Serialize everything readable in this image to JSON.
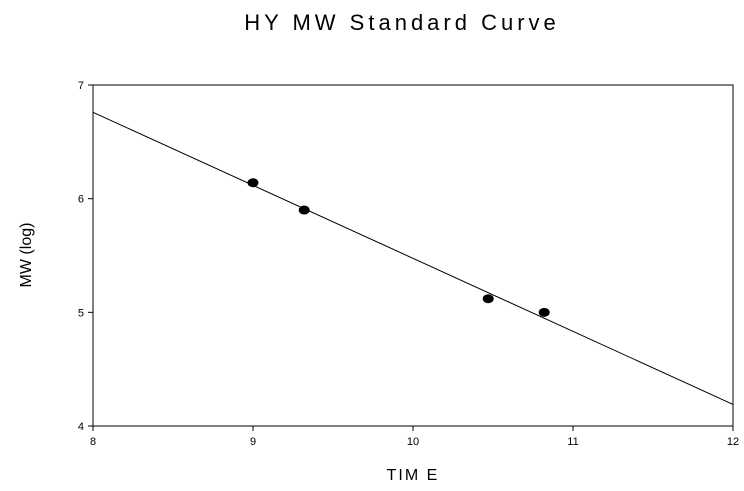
{
  "chart_data": {
    "type": "scatter",
    "title": "HY  MW  Standard Curve",
    "xlabel": "TIM E",
    "ylabel": "MW (log)",
    "xlim": [
      8,
      12
    ],
    "ylim": [
      4,
      7
    ],
    "xticks": [
      8,
      9,
      10,
      11,
      12
    ],
    "yticks": [
      4,
      5,
      6,
      7
    ],
    "grid": false,
    "series": [
      {
        "type": "scatter",
        "points": [
          {
            "x": 9.0,
            "y": 6.14
          },
          {
            "x": 9.32,
            "y": 5.9
          },
          {
            "x": 10.47,
            "y": 5.12
          },
          {
            "x": 10.82,
            "y": 5.0
          }
        ]
      },
      {
        "type": "line",
        "points": [
          {
            "x": 8.0,
            "y": 6.76
          },
          {
            "x": 12.0,
            "y": 4.19
          }
        ]
      }
    ]
  }
}
